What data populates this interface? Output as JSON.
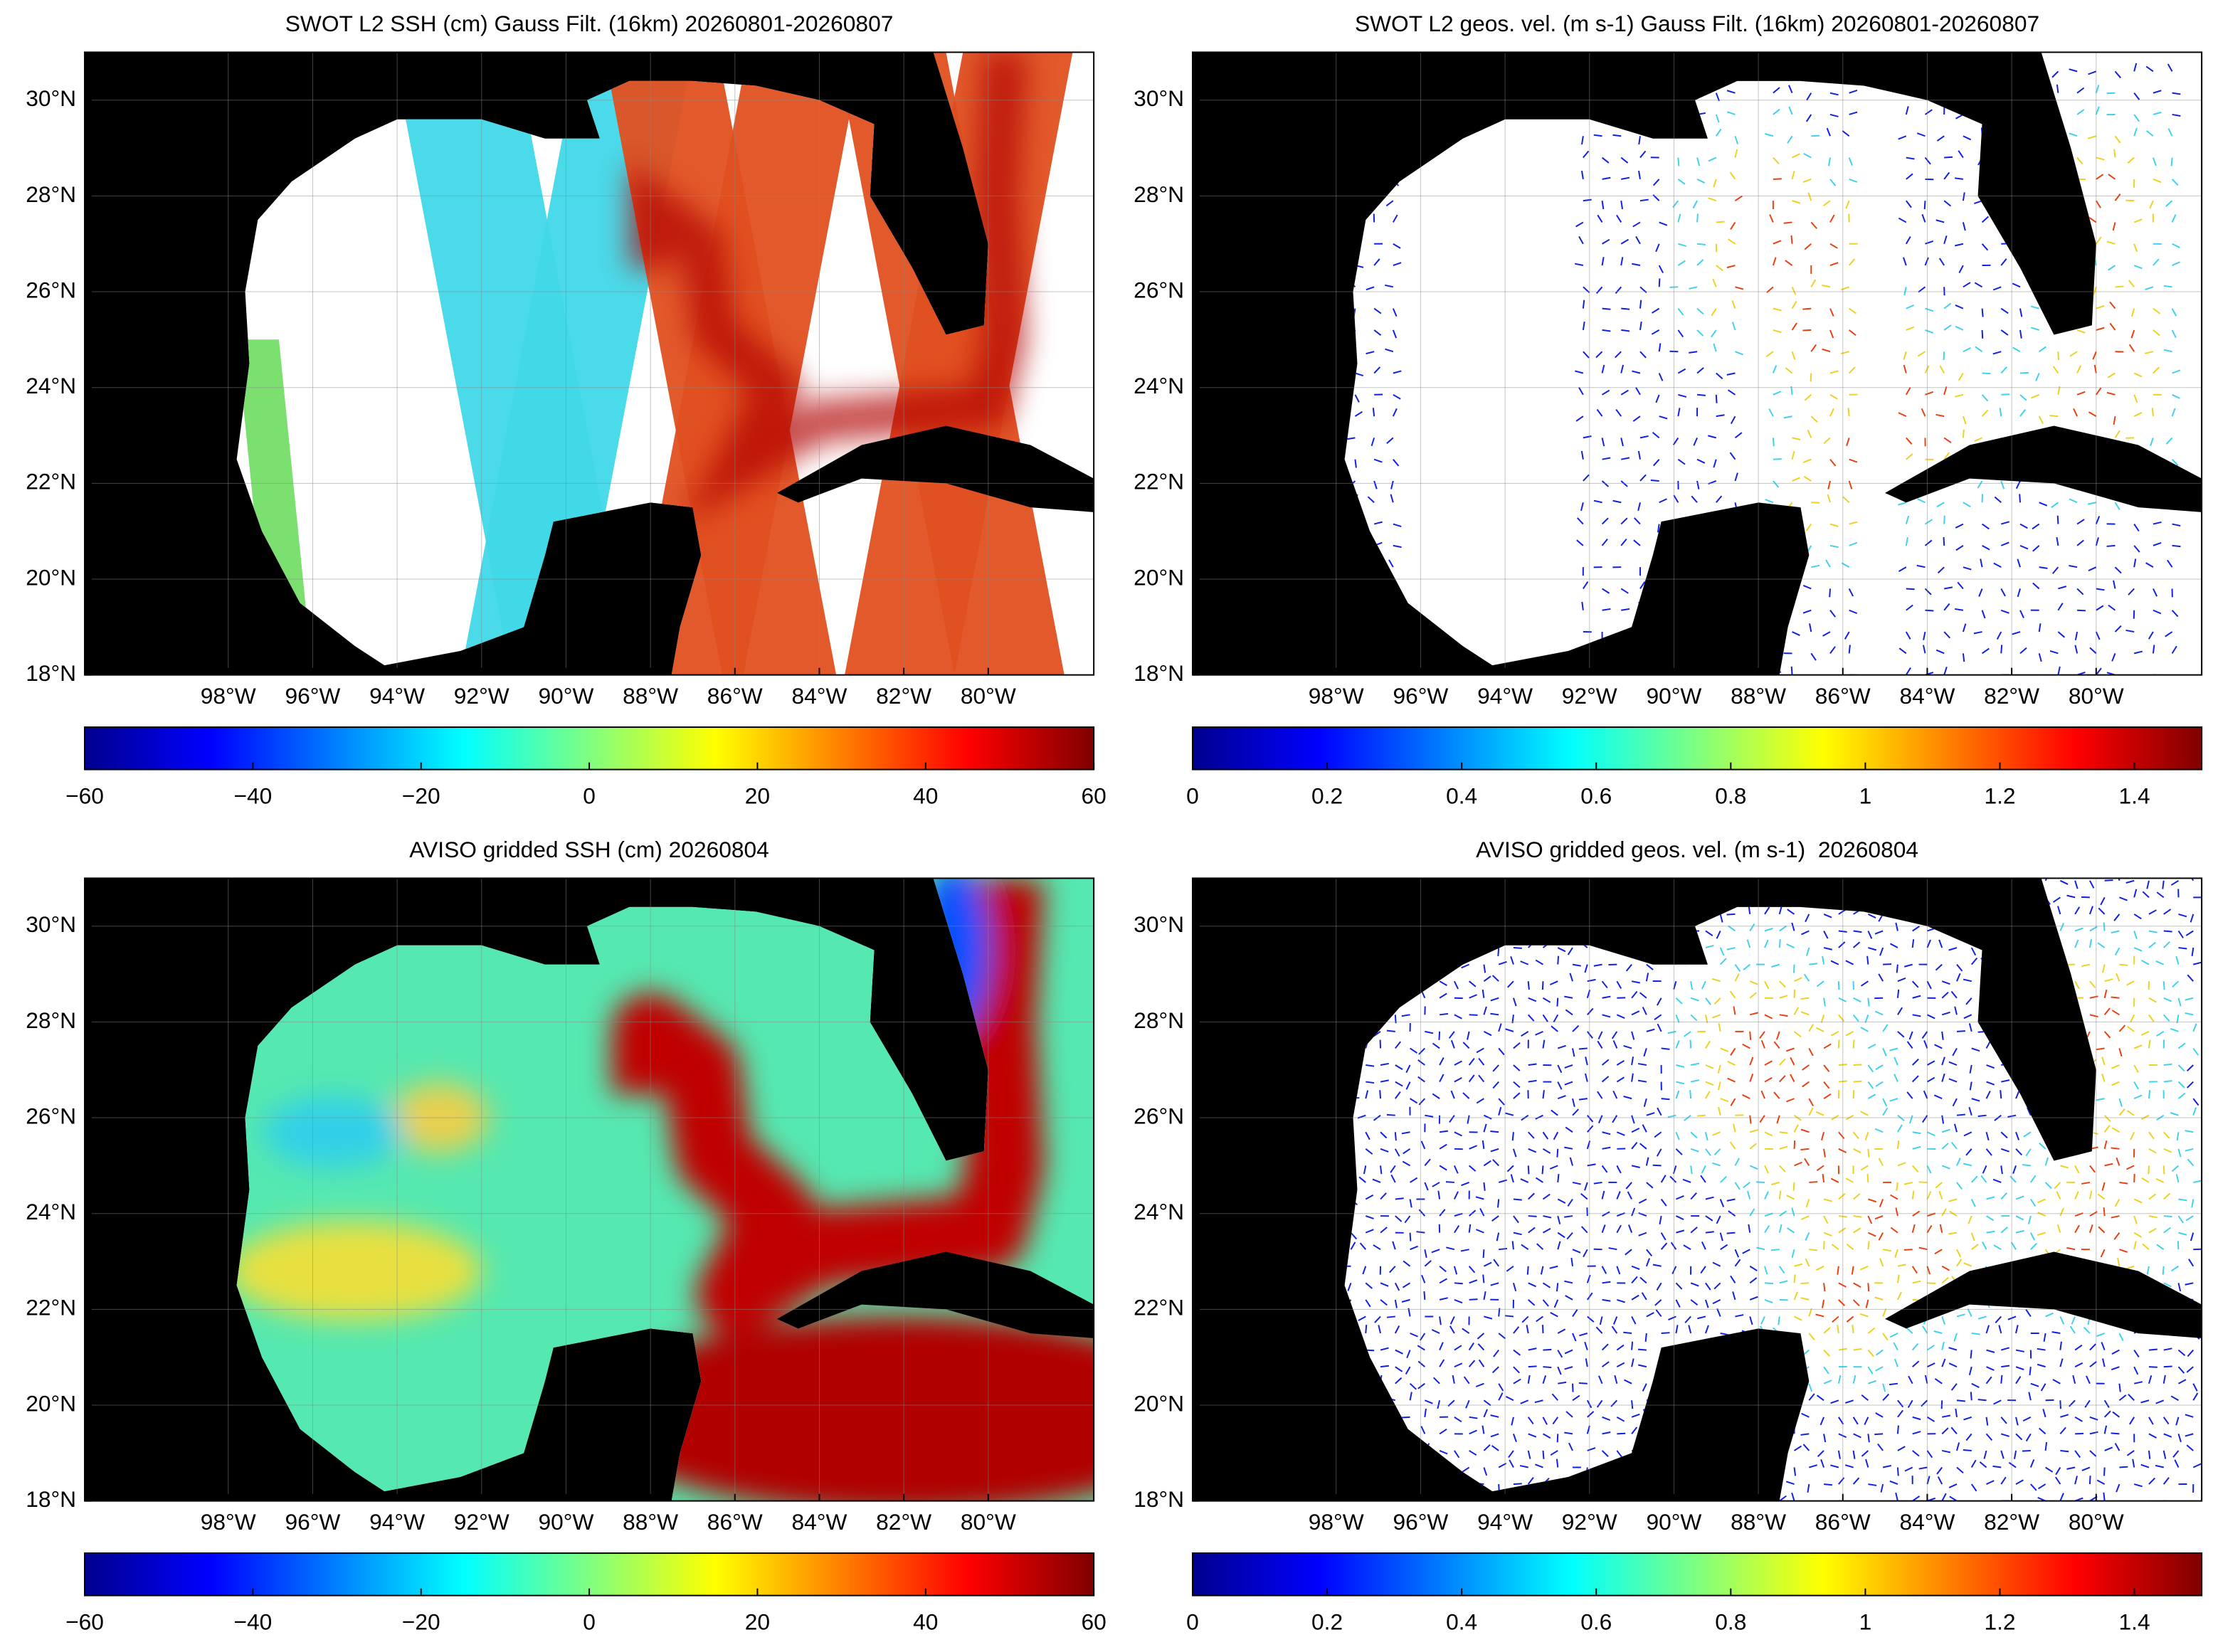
{
  "panels": [
    {
      "title": "SWOT L2 SSH (cm) Gauss Filt. (16km) 20260801-20260807",
      "kind": "ssh-swath",
      "xlim": [
        -101.4,
        -77.5
      ],
      "ylim": [
        18,
        31
      ],
      "xticks": [
        {
          "value": -98,
          "label": "98°W"
        },
        {
          "value": -96,
          "label": "96°W"
        },
        {
          "value": -94,
          "label": "94°W"
        },
        {
          "value": -92,
          "label": "92°W"
        },
        {
          "value": -90,
          "label": "90°W"
        },
        {
          "value": -88,
          "label": "88°W"
        },
        {
          "value": -86,
          "label": "86°W"
        },
        {
          "value": -84,
          "label": "84°W"
        },
        {
          "value": -82,
          "label": "82°W"
        },
        {
          "value": -80,
          "label": "80°W"
        }
      ],
      "yticks": [
        {
          "value": 18,
          "label": "18°N"
        },
        {
          "value": 20,
          "label": "20°N"
        },
        {
          "value": 22,
          "label": "22°N"
        },
        {
          "value": 24,
          "label": "24°N"
        },
        {
          "value": 26,
          "label": "26°N"
        },
        {
          "value": 28,
          "label": "28°N"
        },
        {
          "value": 30,
          "label": "30°N"
        }
      ],
      "colorbar": {
        "lim": [
          -60,
          60
        ],
        "ticks": [
          {
            "value": -60,
            "label": "−60"
          },
          {
            "value": -40,
            "label": "−40"
          },
          {
            "value": -20,
            "label": "−20"
          },
          0,
          20,
          40,
          60
        ]
      }
    },
    {
      "title": "SWOT L2 geos. vel. (m s-1) Gauss Filt. (16km) 20260801-20260807",
      "kind": "vel-swath",
      "xlim": [
        -101.4,
        -77.5
      ],
      "ylim": [
        18,
        31
      ],
      "xticks": [
        {
          "value": -98,
          "label": "98°W"
        },
        {
          "value": -96,
          "label": "96°W"
        },
        {
          "value": -94,
          "label": "94°W"
        },
        {
          "value": -92,
          "label": "92°W"
        },
        {
          "value": -90,
          "label": "90°W"
        },
        {
          "value": -88,
          "label": "88°W"
        },
        {
          "value": -86,
          "label": "86°W"
        },
        {
          "value": -84,
          "label": "84°W"
        },
        {
          "value": -82,
          "label": "82°W"
        },
        {
          "value": -80,
          "label": "80°W"
        }
      ],
      "yticks": [
        {
          "value": 18,
          "label": "18°N"
        },
        {
          "value": 20,
          "label": "20°N"
        },
        {
          "value": 22,
          "label": "22°N"
        },
        {
          "value": 24,
          "label": "24°N"
        },
        {
          "value": 26,
          "label": "26°N"
        },
        {
          "value": 28,
          "label": "28°N"
        },
        {
          "value": 30,
          "label": "30°N"
        }
      ],
      "colorbar": {
        "lim": [
          0,
          1.5
        ],
        "ticks": [
          0,
          0.2,
          0.4,
          0.6,
          0.8,
          1,
          1.2,
          1.4
        ]
      }
    },
    {
      "title": "AVISO gridded SSH (cm) 20260804",
      "kind": "ssh-grid",
      "xlim": [
        -101.4,
        -77.5
      ],
      "ylim": [
        18,
        31
      ],
      "xticks": [
        {
          "value": -98,
          "label": "98°W"
        },
        {
          "value": -96,
          "label": "96°W"
        },
        {
          "value": -94,
          "label": "94°W"
        },
        {
          "value": -92,
          "label": "92°W"
        },
        {
          "value": -90,
          "label": "90°W"
        },
        {
          "value": -88,
          "label": "88°W"
        },
        {
          "value": -86,
          "label": "86°W"
        },
        {
          "value": -84,
          "label": "84°W"
        },
        {
          "value": -82,
          "label": "82°W"
        },
        {
          "value": -80,
          "label": "80°W"
        }
      ],
      "yticks": [
        {
          "value": 18,
          "label": "18°N"
        },
        {
          "value": 20,
          "label": "20°N"
        },
        {
          "value": 22,
          "label": "22°N"
        },
        {
          "value": 24,
          "label": "24°N"
        },
        {
          "value": 26,
          "label": "26°N"
        },
        {
          "value": 28,
          "label": "28°N"
        },
        {
          "value": 30,
          "label": "30°N"
        }
      ],
      "colorbar": {
        "lim": [
          -60,
          60
        ],
        "ticks": [
          {
            "value": -60,
            "label": "−60"
          },
          {
            "value": -40,
            "label": "−40"
          },
          {
            "value": -20,
            "label": "−20"
          },
          0,
          20,
          40,
          60
        ]
      }
    },
    {
      "title": "AVISO gridded geos. vel. (m s-1)  20260804",
      "kind": "vel-grid",
      "xlim": [
        -101.4,
        -77.5
      ],
      "ylim": [
        18,
        31
      ],
      "xticks": [
        {
          "value": -98,
          "label": "98°W"
        },
        {
          "value": -96,
          "label": "96°W"
        },
        {
          "value": -94,
          "label": "94°W"
        },
        {
          "value": -92,
          "label": "92°W"
        },
        {
          "value": -90,
          "label": "90°W"
        },
        {
          "value": -88,
          "label": "88°W"
        },
        {
          "value": -86,
          "label": "86°W"
        },
        {
          "value": -84,
          "label": "84°W"
        },
        {
          "value": -82,
          "label": "82°W"
        },
        {
          "value": -80,
          "label": "80°W"
        }
      ],
      "yticks": [
        {
          "value": 18,
          "label": "18°N"
        },
        {
          "value": 20,
          "label": "20°N"
        },
        {
          "value": 22,
          "label": "22°N"
        },
        {
          "value": 24,
          "label": "24°N"
        },
        {
          "value": 26,
          "label": "26°N"
        },
        {
          "value": 28,
          "label": "28°N"
        },
        {
          "value": 30,
          "label": "30°N"
        }
      ],
      "colorbar": {
        "lim": [
          0,
          1.5
        ],
        "ticks": [
          0,
          0.2,
          0.4,
          0.6,
          0.8,
          1,
          1.2,
          1.4
        ]
      }
    }
  ]
}
